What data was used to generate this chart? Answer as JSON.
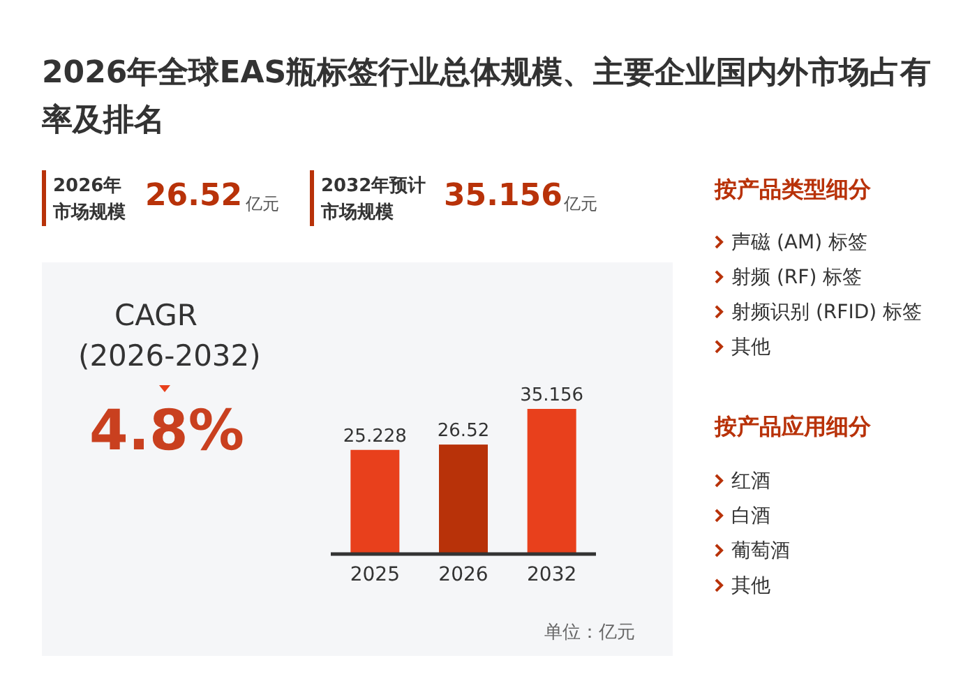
{
  "chart_data": {
    "type": "bar",
    "title": "2026年全球EAS瓶标签行业总体规模、主要企业国内外市场占有率及排名",
    "categories": [
      "2025",
      "2026",
      "2032"
    ],
    "values": [
      25.228,
      26.52,
      35.156
    ],
    "colors": [
      "#e8401c",
      "#b83209",
      "#e8401c"
    ],
    "data_labels": true,
    "annotations": [
      "2026年",
      "市场规模",
      "26.52",
      "亿元",
      "2032年预计",
      "市场规模",
      "35.156",
      "亿元",
      "CAGR",
      "(2026-2032)",
      "4.8%",
      "按产品类型细分",
      "声磁 (AM) 标签",
      "射频 (RF) 标签",
      "射频识别 (RFID) 标签",
      "其他",
      "按产品应用细分",
      "红酒",
      "白酒",
      "葡萄酒",
      "其他",
      "单位：亿元"
    ]
  }
}
